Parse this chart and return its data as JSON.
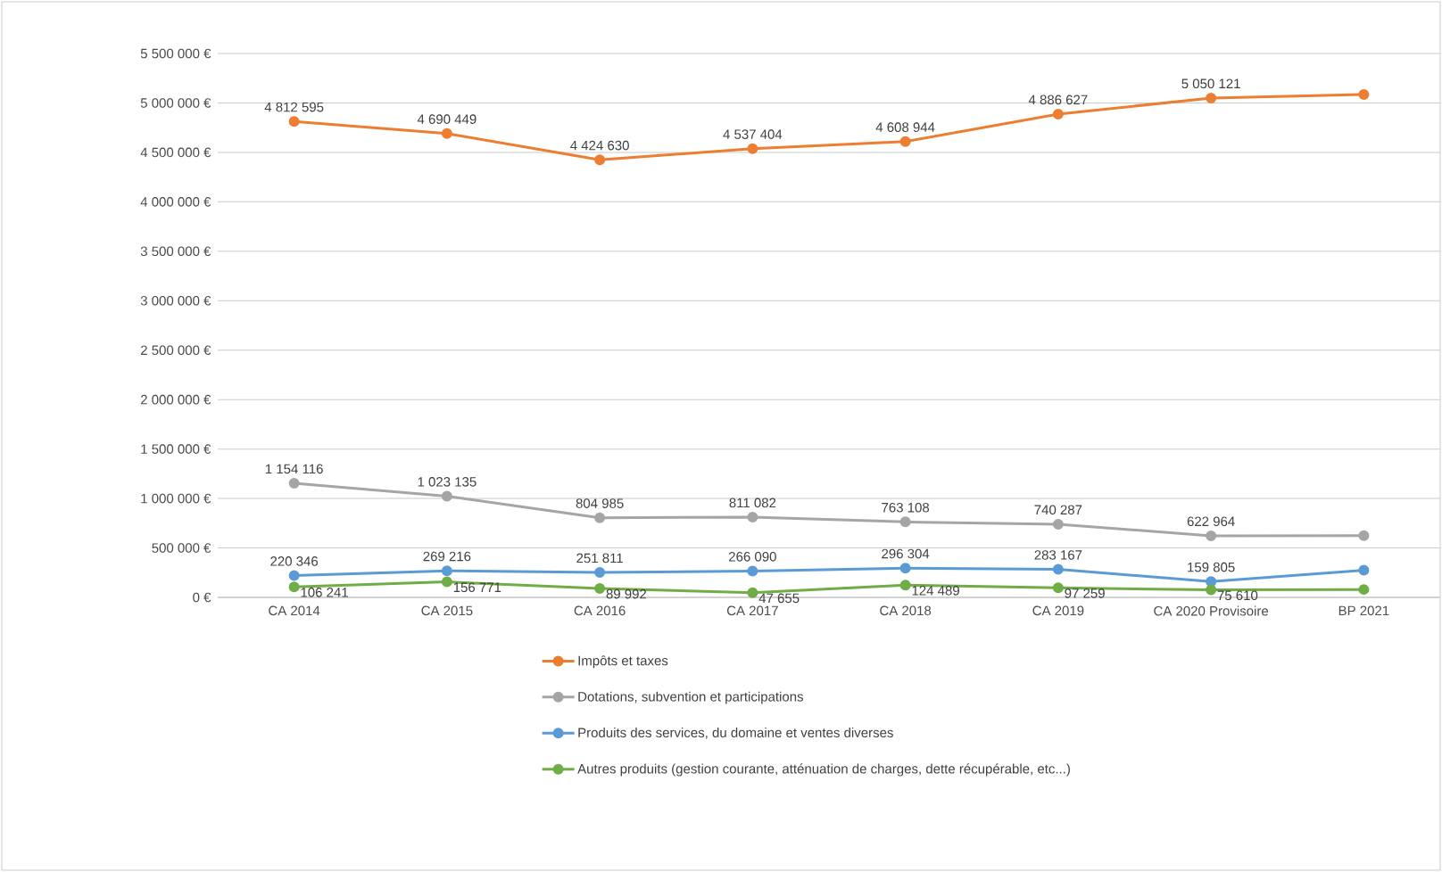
{
  "chart_data": {
    "type": "line",
    "categories": [
      "CA 2014",
      "CA 2015",
      "CA 2016",
      "CA 2017",
      "CA 2018",
      "CA 2019",
      "CA 2020 Provisoire",
      "BP 2021"
    ],
    "series": [
      {
        "name": "Impôts et taxes",
        "color": "#ed7d31",
        "values": [
          4812595,
          4690449,
          4424630,
          4537404,
          4608944,
          4886627,
          5050121,
          5085000
        ],
        "value_labels": [
          "4 812 595",
          "4 690 449",
          "4 424 630",
          "4 537 404",
          "4 608 944",
          "4 886 627",
          "5 050 121",
          null
        ]
      },
      {
        "name": "Dotations, subvention et participations",
        "color": "#a5a5a5",
        "values": [
          1154116,
          1023135,
          804985,
          811082,
          763108,
          740287,
          622964,
          624000
        ],
        "value_labels": [
          "1 154 116",
          "1 023 135",
          "804 985",
          "811 082",
          "763 108",
          "740 287",
          "622 964",
          null
        ]
      },
      {
        "name": "Produits des services, du domaine et ventes diverses",
        "color": "#5b9bd5",
        "values": [
          220346,
          269216,
          251811,
          266090,
          296304,
          283167,
          159805,
          274000
        ],
        "value_labels": [
          "220 346",
          "269 216",
          "251 811",
          "266 090",
          "296 304",
          "283 167",
          "159 805",
          null
        ]
      },
      {
        "name": "Autres produits (gestion courante, atténuation de charges, dette récupérable, etc...)",
        "color": "#70ad47",
        "values": [
          106241,
          156771,
          89992,
          47655,
          124489,
          97259,
          75610,
          80000
        ],
        "value_labels": [
          "106 241",
          "156 771",
          "89 992",
          "47 655",
          "124 489",
          "97 259",
          "75 610",
          null
        ]
      }
    ],
    "ylim": [
      0,
      5500000
    ],
    "yticks": [
      {
        "value": 0,
        "label": "0 €"
      },
      {
        "value": 500000,
        "label": "500 000 €"
      },
      {
        "value": 1000000,
        "label": "1 000 000 €"
      },
      {
        "value": 1500000,
        "label": "1 500 000 €"
      },
      {
        "value": 2000000,
        "label": "2 000 000 €"
      },
      {
        "value": 2500000,
        "label": "2 500 000 €"
      },
      {
        "value": 3000000,
        "label": "3 000 000 €"
      },
      {
        "value": 3500000,
        "label": "3 500 000 €"
      },
      {
        "value": 4000000,
        "label": "4 000 000 €"
      },
      {
        "value": 4500000,
        "label": "4 500 000 €"
      },
      {
        "value": 5000000,
        "label": "5 000 000 €"
      },
      {
        "value": 5500000,
        "label": "5 500 000 €"
      }
    ],
    "grid": "y",
    "legend": "bottom",
    "marker": "circle",
    "line_style": "solid"
  }
}
